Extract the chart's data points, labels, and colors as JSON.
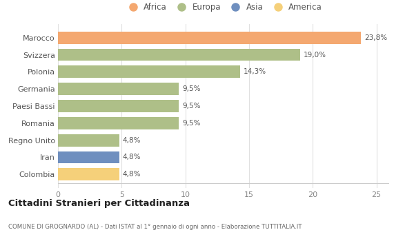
{
  "countries": [
    "Marocco",
    "Svizzera",
    "Polonia",
    "Germania",
    "Paesi Bassi",
    "Romania",
    "Regno Unito",
    "Iran",
    "Colombia"
  ],
  "values": [
    23.8,
    19.0,
    14.3,
    9.5,
    9.5,
    9.5,
    4.8,
    4.8,
    4.8
  ],
  "labels": [
    "23,8%",
    "19,0%",
    "14,3%",
    "9,5%",
    "9,5%",
    "9,5%",
    "4,8%",
    "4,8%",
    "4,8%"
  ],
  "colors": [
    "#F4A870",
    "#AEBF88",
    "#AEBF88",
    "#AEBF88",
    "#AEBF88",
    "#AEBF88",
    "#AEBF88",
    "#6F8FBF",
    "#F5D07A"
  ],
  "legend": [
    {
      "label": "Africa",
      "color": "#F4A870"
    },
    {
      "label": "Europa",
      "color": "#AEBF88"
    },
    {
      "label": "Asia",
      "color": "#6F8FBF"
    },
    {
      "label": "America",
      "color": "#F5D07A"
    }
  ],
  "xlim": [
    0,
    26
  ],
  "xticks": [
    0,
    5,
    10,
    15,
    20,
    25
  ],
  "title": "Cittadini Stranieri per Cittadinanza",
  "subtitle": "COMUNE DI GROGNARDO (AL) - Dati ISTAT al 1° gennaio di ogni anno - Elaborazione TUTTITALIA.IT",
  "background_color": "#ffffff",
  "grid_color": "#e0e0e0"
}
